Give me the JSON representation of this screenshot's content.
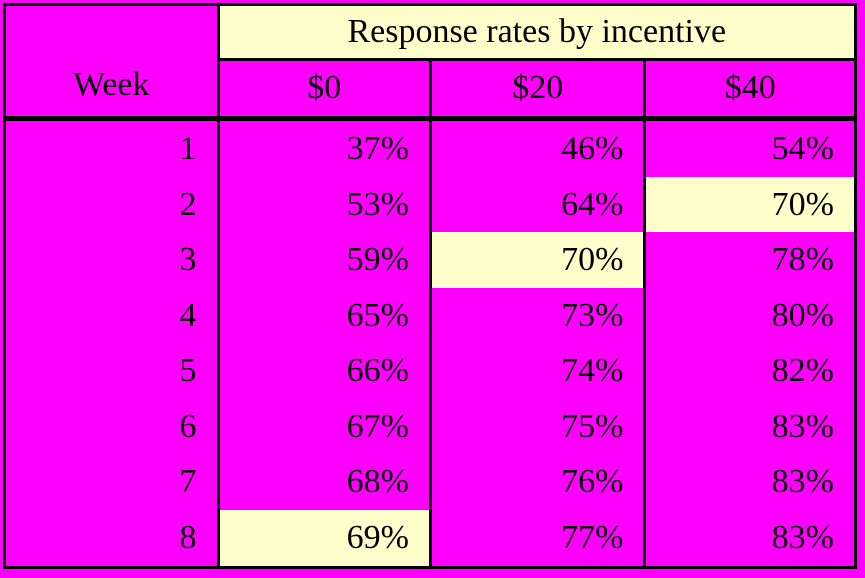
{
  "table": {
    "title": "Response rates by incentive",
    "week_header": "Week",
    "columns": [
      "$0",
      "$20",
      "$40"
    ],
    "rows": [
      {
        "week": "1",
        "values": [
          "37%",
          "46%",
          "54%"
        ]
      },
      {
        "week": "2",
        "values": [
          "53%",
          "64%",
          "70%"
        ]
      },
      {
        "week": "3",
        "values": [
          "59%",
          "70%",
          "78%"
        ]
      },
      {
        "week": "4",
        "values": [
          "65%",
          "73%",
          "80%"
        ]
      },
      {
        "week": "5",
        "values": [
          "66%",
          "74%",
          "82%"
        ]
      },
      {
        "week": "6",
        "values": [
          "67%",
          "75%",
          "83%"
        ]
      },
      {
        "week": "7",
        "values": [
          "68%",
          "76%",
          "83%"
        ]
      },
      {
        "week": "8",
        "values": [
          "69%",
          "77%",
          "83%"
        ]
      }
    ],
    "highlighted_cells": [
      {
        "week": "2",
        "column": "$40",
        "value": "70%"
      },
      {
        "week": "3",
        "column": "$20",
        "value": "70%"
      },
      {
        "week": "8",
        "column": "$0",
        "value": "69%"
      }
    ],
    "colors": {
      "background_magenta": "#FF00FF",
      "highlight_cream": "#FFFFCC",
      "border_black": "#000000",
      "text_black": "#000000"
    }
  },
  "chart_data": {
    "type": "table",
    "title": "Response rates by incentive",
    "xlabel": "Week",
    "categories": [
      1,
      2,
      3,
      4,
      5,
      6,
      7,
      8
    ],
    "series": [
      {
        "name": "$0",
        "values": [
          37,
          53,
          59,
          65,
          66,
          67,
          68,
          69
        ]
      },
      {
        "name": "$20",
        "values": [
          46,
          64,
          70,
          73,
          74,
          75,
          76,
          77
        ]
      },
      {
        "name": "$40",
        "values": [
          54,
          70,
          78,
          80,
          82,
          83,
          83,
          83
        ]
      }
    ],
    "unit": "%",
    "notes": "Highlighted cells: week 2 / $40 = 70%, week 3 / $20 = 70%, week 8 / $0 = 69%"
  }
}
